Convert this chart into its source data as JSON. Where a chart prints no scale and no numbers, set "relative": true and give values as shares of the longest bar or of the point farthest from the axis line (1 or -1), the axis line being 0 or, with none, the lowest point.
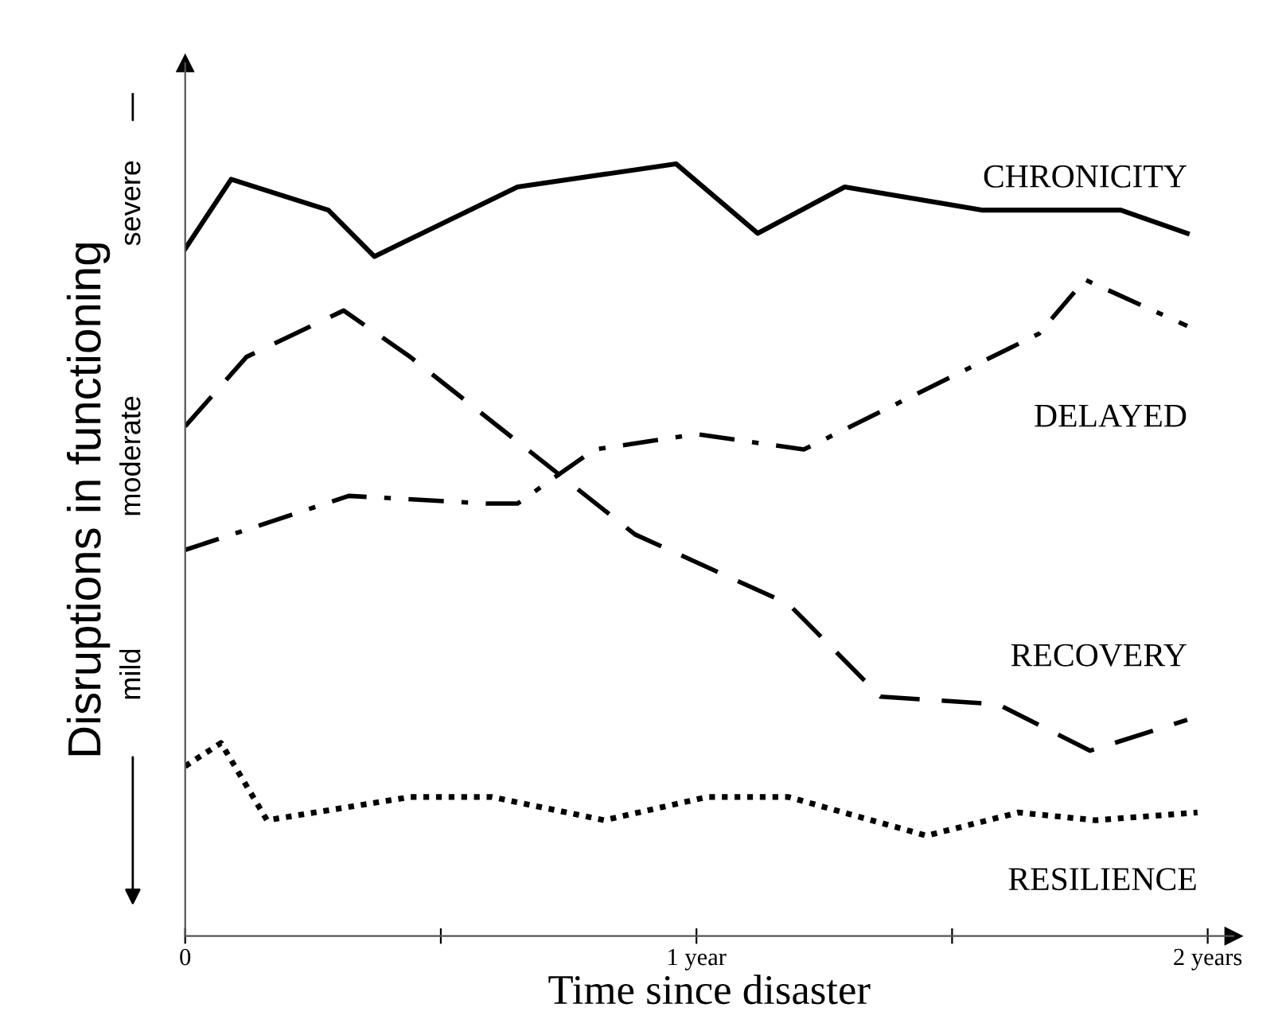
{
  "chart_data": {
    "type": "line",
    "relative": true,
    "xlabel": "Time since disaster",
    "ylabel": "Disruptions in functioning",
    "annotations": [
      "mild",
      "moderate",
      "severe"
    ],
    "xlim": [
      0,
      2.05
    ],
    "xticks": [
      {
        "value": 0,
        "label": "0"
      },
      {
        "value": 0.5,
        "label": null
      },
      {
        "value": 1,
        "label": "1 year"
      },
      {
        "value": 1.5,
        "label": null
      },
      {
        "value": 2,
        "label": "2 years"
      }
    ],
    "grid": false,
    "legend": false,
    "marker": "none",
    "series": [
      {
        "name": "CHRONICITY",
        "color": "#000000",
        "line_style": "solid",
        "x": [
          0,
          0.09,
          0.28,
          0.37,
          0.65,
          0.96,
          1.12,
          1.29,
          1.56,
          1.83,
          1.96
        ],
        "values": [
          0.89,
          0.98,
          0.94,
          0.88,
          0.97,
          1.0,
          0.91,
          0.97,
          0.94,
          0.94,
          0.91
        ]
      },
      {
        "name": "DELAYED",
        "color": "#000000",
        "line_style": "dashdot",
        "x": [
          0,
          0.32,
          0.59,
          0.65,
          0.8,
          1.0,
          1.21,
          1.67,
          1.76,
          1.96
        ],
        "values": [
          0.5,
          0.57,
          0.56,
          0.56,
          0.63,
          0.65,
          0.63,
          0.78,
          0.85,
          0.79
        ]
      },
      {
        "name": "RECOVERY",
        "color": "#000000",
        "line_style": "dashed",
        "x": [
          0,
          0.12,
          0.31,
          0.44,
          0.88,
          1.18,
          1.36,
          1.59,
          1.77,
          1.96
        ],
        "values": [
          0.66,
          0.75,
          0.81,
          0.75,
          0.52,
          0.43,
          0.31,
          0.3,
          0.24,
          0.28
        ]
      },
      {
        "name": "RESILIENCE",
        "color": "#000000",
        "line_style": "dotted",
        "x": [
          0,
          0.07,
          0.16,
          0.44,
          0.6,
          0.82,
          1.02,
          1.18,
          1.45,
          1.63,
          1.78,
          1.98
        ],
        "values": [
          0.22,
          0.25,
          0.15,
          0.18,
          0.18,
          0.15,
          0.18,
          0.18,
          0.13,
          0.16,
          0.15,
          0.16
        ]
      }
    ]
  }
}
